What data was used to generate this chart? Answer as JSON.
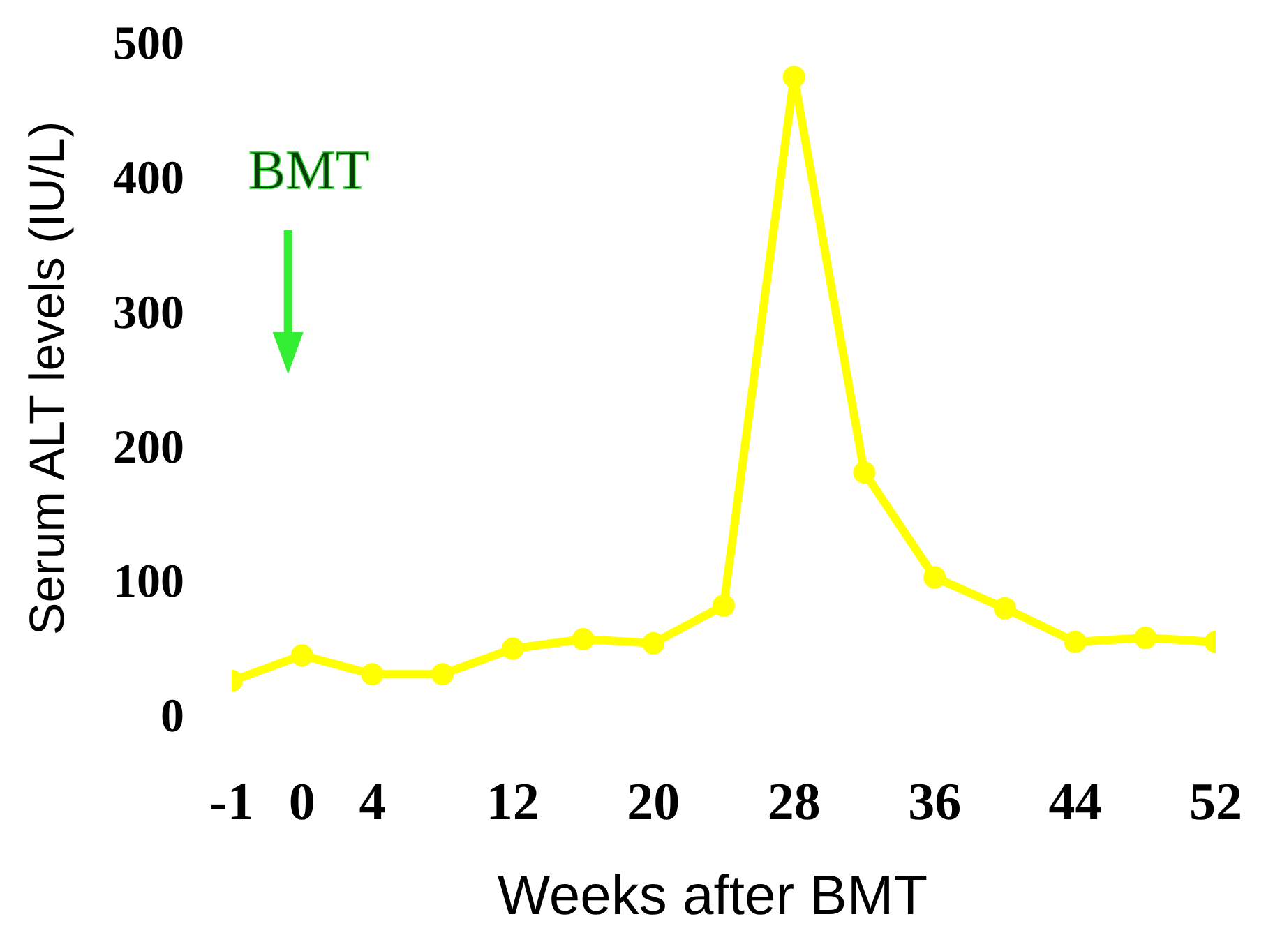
{
  "chart_data": {
    "type": "line",
    "xlabel": "Weeks after BMT",
    "ylabel": "Serum ALT levels (IU/L)",
    "categories": [
      "-1",
      "0",
      "4",
      null,
      "12",
      null,
      "20",
      null,
      "28",
      null,
      "36",
      null,
      "44",
      null,
      "52"
    ],
    "series": [
      {
        "color": "#ffff00",
        "values": [
          25,
          44,
          30,
          30,
          49,
          56,
          53,
          81,
          474,
          180,
          102,
          79,
          54,
          57,
          54
        ]
      }
    ],
    "ylim": [
      0,
      500
    ],
    "yticks": [
      0,
      100,
      200,
      300,
      400,
      500
    ],
    "grid": false,
    "marker": "circle",
    "line_style": "solid",
    "annotations": [
      "BMT"
    ]
  }
}
